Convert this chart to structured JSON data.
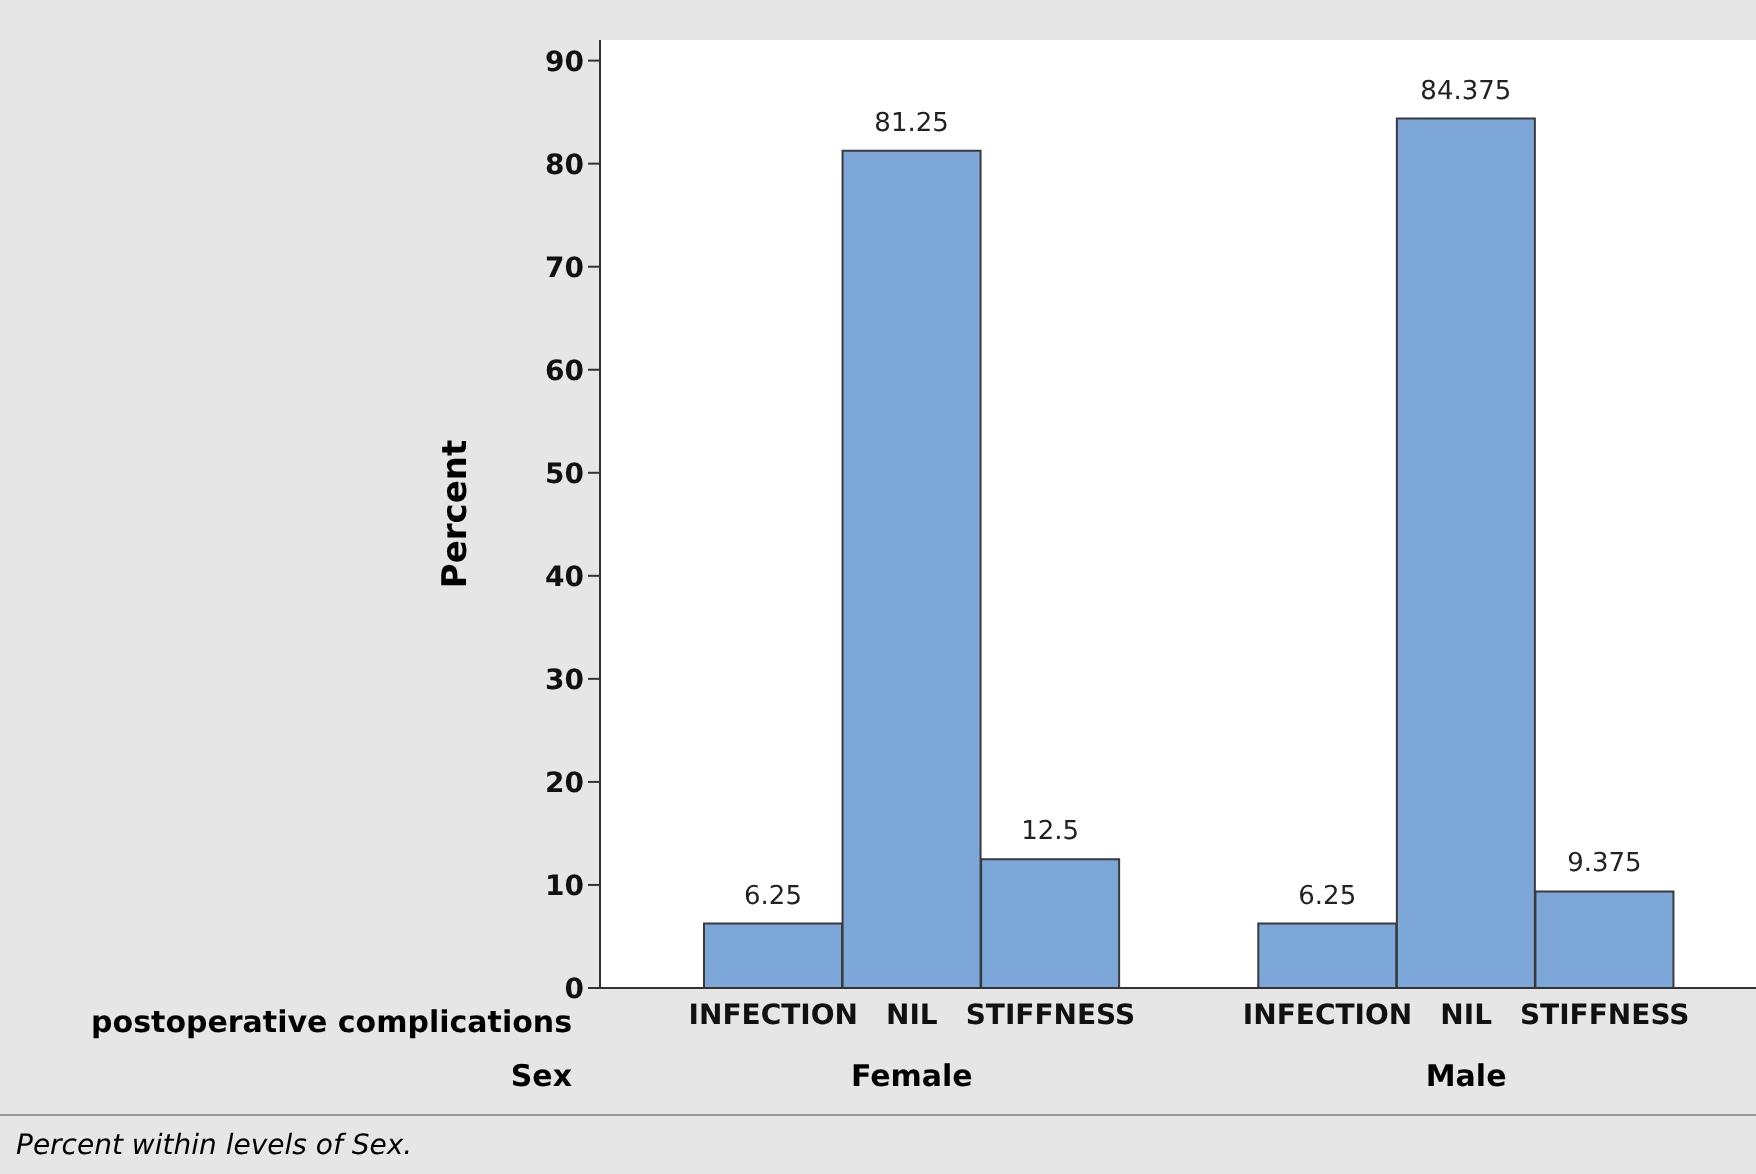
{
  "chart_data": {
    "type": "bar",
    "categories": [
      "INFECTION",
      "NIL",
      "STIFFNESS",
      null,
      "INFECTION",
      "NIL",
      "STIFFNESS"
    ],
    "values": [
      6.25,
      81.25,
      12.5,
      null,
      6.25,
      84.375,
      9.375
    ],
    "color": "#7da7d9",
    "data_labels": true,
    "ylim": [
      0,
      92
    ],
    "yticks": [
      0,
      10,
      20,
      30,
      40,
      50,
      60,
      70,
      80,
      90
    ],
    "ylabel": "Percent",
    "xlabel": "postoperative complications",
    "annotations": [
      "Sex",
      "Female",
      "Male",
      "Percent within levels of Sex."
    ],
    "grid": false,
    "legend": false
  }
}
